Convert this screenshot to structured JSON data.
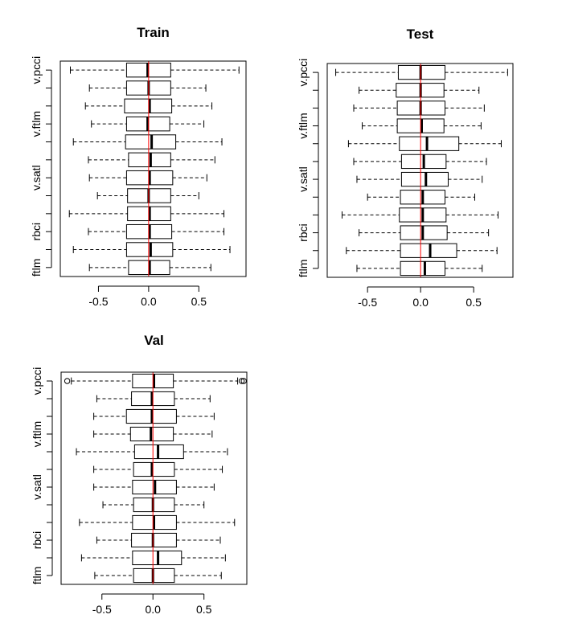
{
  "chart_data": [
    {
      "type": "boxplot",
      "title": "Train",
      "orientation": "horizontal",
      "xlim": [
        -0.88,
        0.97
      ],
      "x_ticks": [
        "-0.5",
        "0.0",
        "0.5"
      ],
      "x_tick_values": [
        -0.5,
        0.0,
        0.5
      ],
      "y_tick_labels": [
        "ftlm",
        "rbci",
        "v.satl",
        "v.ftlm",
        "v.pcci"
      ],
      "y_tick_positions": [
        1,
        3,
        6,
        9,
        12
      ],
      "reference_line": {
        "x": 0.0,
        "color": "#ff0000"
      },
      "boxes": [
        {
          "position": 1,
          "whisker_low": -0.59,
          "q1": -0.2,
          "median": 0.01,
          "q3": 0.21,
          "whisker_high": 0.62,
          "outliers": []
        },
        {
          "position": 2,
          "whisker_low": -0.75,
          "q1": -0.22,
          "median": 0.02,
          "q3": 0.24,
          "whisker_high": 0.81,
          "outliers": []
        },
        {
          "position": 3,
          "whisker_low": -0.6,
          "q1": -0.22,
          "median": 0.01,
          "q3": 0.23,
          "whisker_high": 0.75,
          "outliers": []
        },
        {
          "position": 4,
          "whisker_low": -0.79,
          "q1": -0.21,
          "median": 0.01,
          "q3": 0.22,
          "whisker_high": 0.75,
          "outliers": []
        },
        {
          "position": 5,
          "whisker_low": -0.51,
          "q1": -0.21,
          "median": 0.0,
          "q3": 0.22,
          "whisker_high": 0.5,
          "outliers": []
        },
        {
          "position": 6,
          "whisker_low": -0.59,
          "q1": -0.22,
          "median": 0.01,
          "q3": 0.24,
          "whisker_high": 0.58,
          "outliers": []
        },
        {
          "position": 7,
          "whisker_low": -0.6,
          "q1": -0.2,
          "median": 0.02,
          "q3": 0.22,
          "whisker_high": 0.66,
          "outliers": []
        },
        {
          "position": 8,
          "whisker_low": -0.75,
          "q1": -0.23,
          "median": 0.03,
          "q3": 0.27,
          "whisker_high": 0.73,
          "outliers": []
        },
        {
          "position": 9,
          "whisker_low": -0.57,
          "q1": -0.22,
          "median": -0.01,
          "q3": 0.21,
          "whisker_high": 0.55,
          "outliers": []
        },
        {
          "position": 10,
          "whisker_low": -0.63,
          "q1": -0.24,
          "median": 0.01,
          "q3": 0.23,
          "whisker_high": 0.63,
          "outliers": []
        },
        {
          "position": 11,
          "whisker_low": -0.59,
          "q1": -0.22,
          "median": 0.0,
          "q3": 0.22,
          "whisker_high": 0.57,
          "outliers": []
        },
        {
          "position": 12,
          "whisker_low": -0.78,
          "q1": -0.22,
          "median": -0.01,
          "q3": 0.22,
          "whisker_high": 0.9,
          "outliers": []
        }
      ]
    },
    {
      "type": "boxplot",
      "title": "Test",
      "orientation": "horizontal",
      "xlim": [
        -0.88,
        0.87
      ],
      "x_ticks": [
        "-0.5",
        "0.0",
        "0.5"
      ],
      "x_tick_values": [
        -0.5,
        0.0,
        0.5
      ],
      "y_tick_labels": [
        "ftlm",
        "rbci",
        "v.satl",
        "v.ftlm",
        "v.pcci"
      ],
      "y_tick_positions": [
        1,
        3,
        6,
        9,
        12
      ],
      "reference_line": {
        "x": 0.0,
        "color": "#ff0000"
      },
      "boxes": [
        {
          "position": 1,
          "whisker_low": -0.6,
          "q1": -0.19,
          "median": 0.04,
          "q3": 0.23,
          "whisker_high": 0.58,
          "outliers": []
        },
        {
          "position": 2,
          "whisker_low": -0.7,
          "q1": -0.19,
          "median": 0.09,
          "q3": 0.34,
          "whisker_high": 0.72,
          "outliers": []
        },
        {
          "position": 3,
          "whisker_low": -0.58,
          "q1": -0.19,
          "median": 0.02,
          "q3": 0.25,
          "whisker_high": 0.64,
          "outliers": []
        },
        {
          "position": 4,
          "whisker_low": -0.74,
          "q1": -0.2,
          "median": 0.02,
          "q3": 0.24,
          "whisker_high": 0.73,
          "outliers": []
        },
        {
          "position": 5,
          "whisker_low": -0.5,
          "q1": -0.19,
          "median": 0.02,
          "q3": 0.23,
          "whisker_high": 0.51,
          "outliers": []
        },
        {
          "position": 6,
          "whisker_low": -0.6,
          "q1": -0.18,
          "median": 0.05,
          "q3": 0.26,
          "whisker_high": 0.58,
          "outliers": []
        },
        {
          "position": 7,
          "whisker_low": -0.63,
          "q1": -0.18,
          "median": 0.03,
          "q3": 0.24,
          "whisker_high": 0.62,
          "outliers": []
        },
        {
          "position": 8,
          "whisker_low": -0.68,
          "q1": -0.2,
          "median": 0.06,
          "q3": 0.36,
          "whisker_high": 0.76,
          "outliers": []
        },
        {
          "position": 9,
          "whisker_low": -0.55,
          "q1": -0.22,
          "median": 0.01,
          "q3": 0.22,
          "whisker_high": 0.57,
          "outliers": []
        },
        {
          "position": 10,
          "whisker_low": -0.63,
          "q1": -0.22,
          "median": 0.0,
          "q3": 0.23,
          "whisker_high": 0.6,
          "outliers": []
        },
        {
          "position": 11,
          "whisker_low": -0.58,
          "q1": -0.23,
          "median": 0.0,
          "q3": 0.22,
          "whisker_high": 0.55,
          "outliers": []
        },
        {
          "position": 12,
          "whisker_low": -0.8,
          "q1": -0.21,
          "median": 0.0,
          "q3": 0.23,
          "whisker_high": 0.82,
          "outliers": []
        }
      ]
    },
    {
      "type": "boxplot",
      "title": "Val",
      "orientation": "horizontal",
      "xlim": [
        -0.9,
        0.92
      ],
      "x_ticks": [
        "-0.5",
        "0.0",
        "0.5"
      ],
      "x_tick_values": [
        -0.5,
        0.0,
        0.5
      ],
      "y_tick_labels": [
        "ftlm",
        "rbci",
        "v.satl",
        "v.ftlm",
        "v.pcci"
      ],
      "y_tick_positions": [
        1,
        3,
        6,
        9,
        12
      ],
      "reference_line": {
        "x": 0.0,
        "color": "#ff0000"
      },
      "boxes": [
        {
          "position": 1,
          "whisker_low": -0.57,
          "q1": -0.19,
          "median": 0.0,
          "q3": 0.21,
          "whisker_high": 0.67,
          "outliers": []
        },
        {
          "position": 2,
          "whisker_low": -0.7,
          "q1": -0.2,
          "median": 0.05,
          "q3": 0.28,
          "whisker_high": 0.71,
          "outliers": []
        },
        {
          "position": 3,
          "whisker_low": -0.55,
          "q1": -0.21,
          "median": 0.0,
          "q3": 0.23,
          "whisker_high": 0.66,
          "outliers": []
        },
        {
          "position": 4,
          "whisker_low": -0.72,
          "q1": -0.2,
          "median": 0.01,
          "q3": 0.23,
          "whisker_high": 0.8,
          "outliers": []
        },
        {
          "position": 5,
          "whisker_low": -0.49,
          "q1": -0.19,
          "median": 0.0,
          "q3": 0.21,
          "whisker_high": 0.5,
          "outliers": []
        },
        {
          "position": 6,
          "whisker_low": -0.58,
          "q1": -0.2,
          "median": 0.02,
          "q3": 0.23,
          "whisker_high": 0.6,
          "outliers": []
        },
        {
          "position": 7,
          "whisker_low": -0.58,
          "q1": -0.19,
          "median": -0.01,
          "q3": 0.21,
          "whisker_high": 0.68,
          "outliers": []
        },
        {
          "position": 8,
          "whisker_low": -0.75,
          "q1": -0.18,
          "median": 0.05,
          "q3": 0.3,
          "whisker_high": 0.73,
          "outliers": []
        },
        {
          "position": 9,
          "whisker_low": -0.58,
          "q1": -0.22,
          "median": -0.02,
          "q3": 0.2,
          "whisker_high": 0.58,
          "outliers": []
        },
        {
          "position": 10,
          "whisker_low": -0.58,
          "q1": -0.26,
          "median": -0.01,
          "q3": 0.23,
          "whisker_high": 0.6,
          "outliers": []
        },
        {
          "position": 11,
          "whisker_low": -0.55,
          "q1": -0.21,
          "median": -0.01,
          "q3": 0.21,
          "whisker_high": 0.56,
          "outliers": []
        },
        {
          "position": 12,
          "whisker_low": -0.8,
          "q1": -0.2,
          "median": 0.01,
          "q3": 0.2,
          "whisker_high": 0.83,
          "outliers": [
            -0.84,
            0.87,
            0.89
          ]
        }
      ]
    }
  ]
}
